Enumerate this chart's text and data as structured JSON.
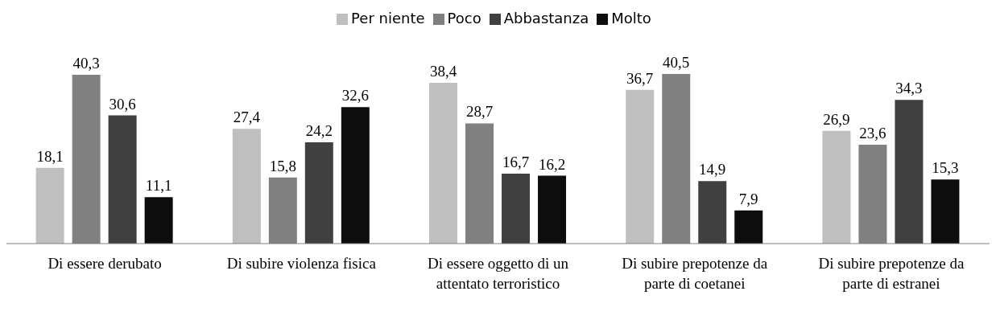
{
  "chart_data": {
    "type": "bar",
    "categories": [
      "Di essere derubato",
      "Di subire violenza fisica",
      "Di essere oggetto di un attentato terroristico",
      "Di subire prepotenze da parte di coetanei",
      "Di subire prepotenze da parte di estranei"
    ],
    "series": [
      {
        "name": "Per niente",
        "color": "#bfbfbf",
        "values": [
          18.1,
          27.4,
          38.4,
          36.7,
          26.9
        ],
        "value_labels": [
          "18,1",
          "27,4",
          "38,4",
          "36,7",
          "26,9"
        ]
      },
      {
        "name": "Poco",
        "color": "#808080",
        "values": [
          40.3,
          15.8,
          28.7,
          40.5,
          23.6
        ],
        "value_labels": [
          "40,3",
          "15,8",
          "28,7",
          "40,5",
          "23,6"
        ]
      },
      {
        "name": "Abbastanza",
        "color": "#404040",
        "values": [
          30.6,
          24.2,
          16.7,
          14.9,
          34.3
        ],
        "value_labels": [
          "30,6",
          "24,2",
          "16,7",
          "14,9",
          "34,3"
        ]
      },
      {
        "name": "Molto",
        "color": "#0d0d0d",
        "values": [
          11.1,
          32.6,
          16.2,
          7.9,
          15.3
        ],
        "value_labels": [
          "11,1",
          "32,6",
          "16,2",
          "7,9",
          "15,3"
        ]
      }
    ],
    "legend": "top",
    "grid": false
  }
}
